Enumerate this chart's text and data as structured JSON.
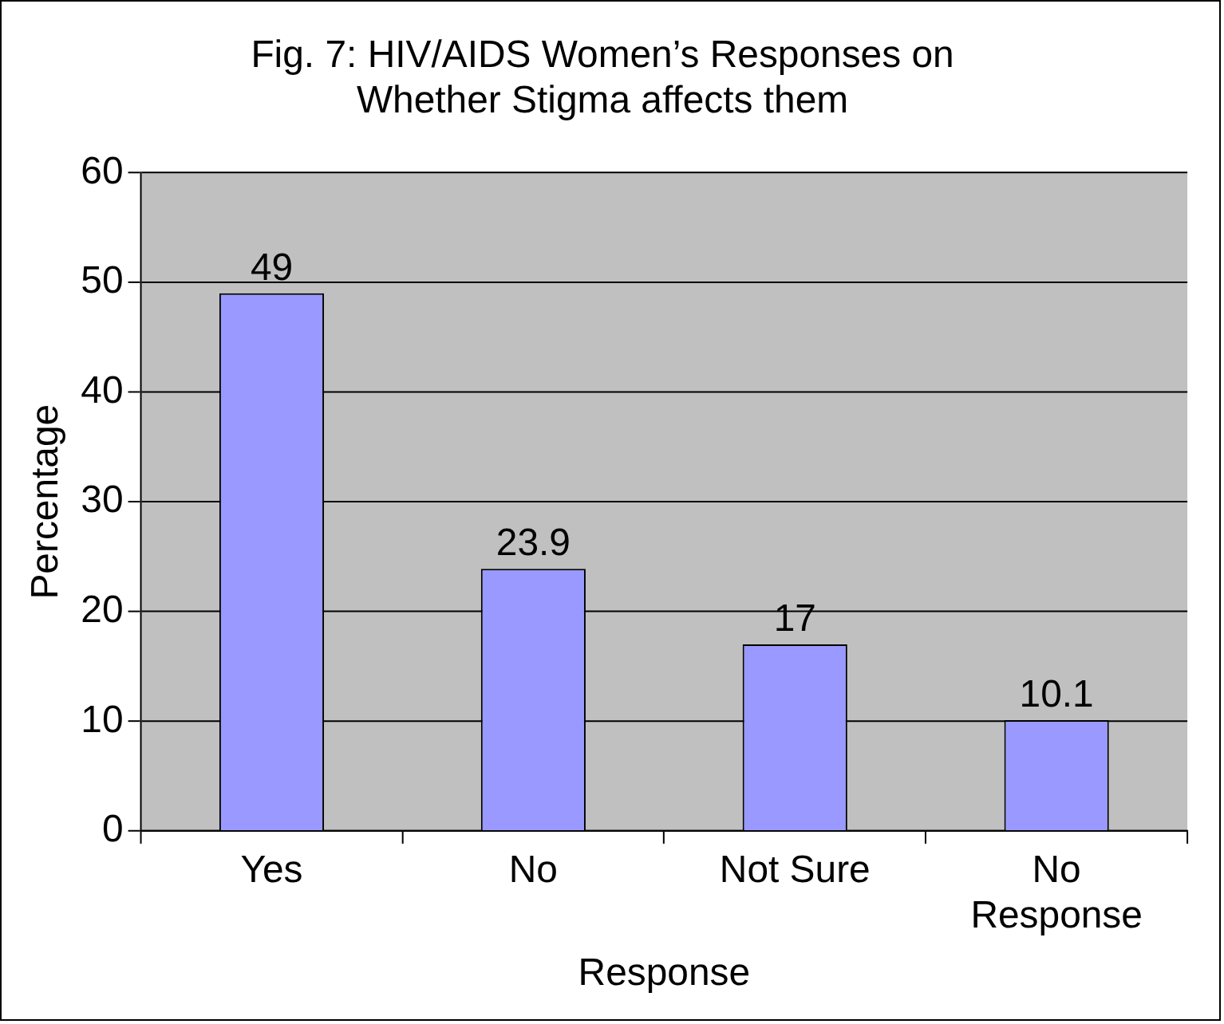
{
  "chart_data": {
    "type": "bar",
    "title": "Fig. 7: HIV/AIDS Women’s Responses on Whether Stigma affects them",
    "xlabel": "Response",
    "ylabel": "Percentage",
    "categories": [
      "Yes",
      "No",
      "Not Sure",
      "No Response"
    ],
    "values": [
      49,
      23.9,
      17,
      10.1
    ],
    "color": "#9999ff",
    "ylim": [
      0,
      60
    ],
    "yticks": [
      0,
      10,
      20,
      30,
      40,
      50,
      60
    ],
    "grid": "y",
    "data_labels": true,
    "legend": false
  }
}
